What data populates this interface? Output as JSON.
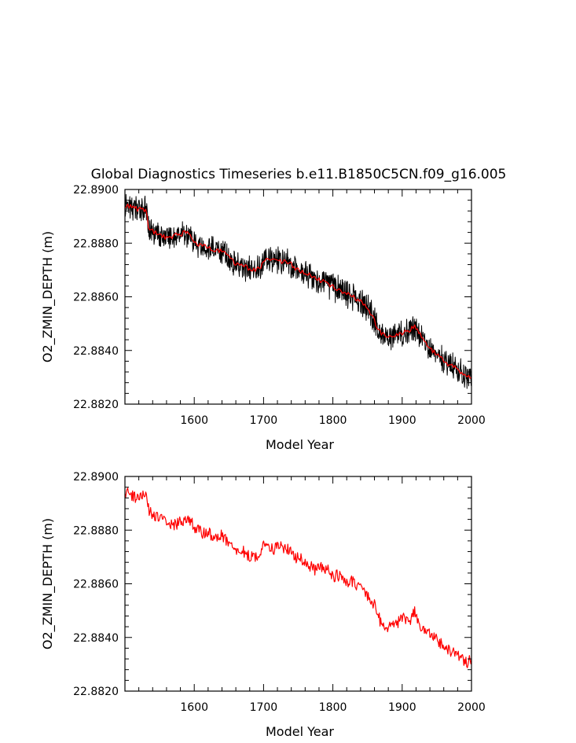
{
  "title": "Global Diagnostics Timeseries b.e11.B1850C5CN.f09_g16.005",
  "colors": {
    "raw_series": "#000000",
    "smoothed_series": "#ff0000",
    "frame": "#000000",
    "background": "#ffffff"
  },
  "chart_data": [
    {
      "type": "line",
      "title": "Global Diagnostics Timeseries b.e11.B1850C5CN.f09_g16.005",
      "xlabel": "Model Year",
      "ylabel": "O2_ZMIN_DEPTH (m)",
      "xlim": [
        1500,
        2000
      ],
      "ylim": [
        22.882,
        22.89
      ],
      "x_ticks": [
        1600,
        1700,
        1800,
        1900,
        2000
      ],
      "y_ticks": [
        "22.8820",
        "22.8840",
        "22.8860",
        "22.8880",
        "22.8900"
      ],
      "grid": false,
      "series": [
        {
          "style": "raw annual values, black, high variability band",
          "color": "#000000",
          "x": [
            1500,
            1530,
            1535,
            1560,
            1590,
            1600,
            1640,
            1660,
            1690,
            1705,
            1735,
            1750,
            1790,
            1830,
            1850,
            1870,
            1880,
            1900,
            1918,
            1935,
            1965,
            2000
          ],
          "y": [
            22.8894,
            22.8892,
            22.8885,
            22.8882,
            22.8884,
            22.888,
            22.8877,
            22.8872,
            22.887,
            22.8874,
            22.8873,
            22.887,
            22.8865,
            22.886,
            22.8856,
            22.8846,
            22.8845,
            22.8846,
            22.8849,
            22.8842,
            22.8835,
            22.883
          ]
        },
        {
          "style": "smoothed, red",
          "color": "#ff0000",
          "x": [
            1500,
            1530,
            1535,
            1560,
            1590,
            1600,
            1640,
            1660,
            1690,
            1705,
            1735,
            1750,
            1790,
            1830,
            1850,
            1870,
            1880,
            1900,
            1918,
            1935,
            1965,
            2000
          ],
          "y": [
            22.8894,
            22.8892,
            22.8885,
            22.8882,
            22.8884,
            22.888,
            22.8877,
            22.8872,
            22.887,
            22.8874,
            22.8873,
            22.887,
            22.8865,
            22.886,
            22.8856,
            22.8846,
            22.8845,
            22.8846,
            22.8849,
            22.8842,
            22.8835,
            22.883
          ]
        }
      ]
    },
    {
      "type": "line",
      "xlabel": "Model Year",
      "ylabel": "O2_ZMIN_DEPTH (m)",
      "xlim": [
        1500,
        2000
      ],
      "ylim": [
        22.882,
        22.89
      ],
      "x_ticks": [
        1600,
        1700,
        1800,
        1900,
        2000
      ],
      "y_ticks": [
        "22.8820",
        "22.8840",
        "22.8860",
        "22.8880",
        "22.8900"
      ],
      "grid": false,
      "series": [
        {
          "style": "annual values, red",
          "color": "#ff0000",
          "x": [
            1500,
            1510,
            1520,
            1530,
            1535,
            1545,
            1555,
            1565,
            1575,
            1585,
            1590,
            1600,
            1610,
            1620,
            1630,
            1640,
            1650,
            1660,
            1670,
            1680,
            1690,
            1700,
            1705,
            1715,
            1725,
            1735,
            1745,
            1755,
            1765,
            1775,
            1785,
            1790,
            1800,
            1810,
            1820,
            1830,
            1840,
            1850,
            1860,
            1870,
            1880,
            1890,
            1900,
            1910,
            1918,
            1925,
            1935,
            1945,
            1955,
            1965,
            1975,
            1985,
            1995,
            2000
          ],
          "y": [
            22.8894,
            22.8893,
            22.8892,
            22.8893,
            22.8887,
            22.8885,
            22.8884,
            22.8882,
            22.8882,
            22.8884,
            22.8885,
            22.8881,
            22.8879,
            22.8879,
            22.8877,
            22.8878,
            22.8875,
            22.8872,
            22.8872,
            22.887,
            22.887,
            22.8874,
            22.8875,
            22.8873,
            22.8874,
            22.8873,
            22.887,
            22.8869,
            22.8867,
            22.8865,
            22.8866,
            22.8866,
            22.8863,
            22.8863,
            22.886,
            22.8861,
            22.8858,
            22.8856,
            22.8852,
            22.8845,
            22.8844,
            22.8845,
            22.8847,
            22.8846,
            22.885,
            22.8844,
            22.8842,
            22.884,
            22.8838,
            22.8835,
            22.8835,
            22.8832,
            22.883,
            22.8833
          ]
        }
      ]
    }
  ]
}
